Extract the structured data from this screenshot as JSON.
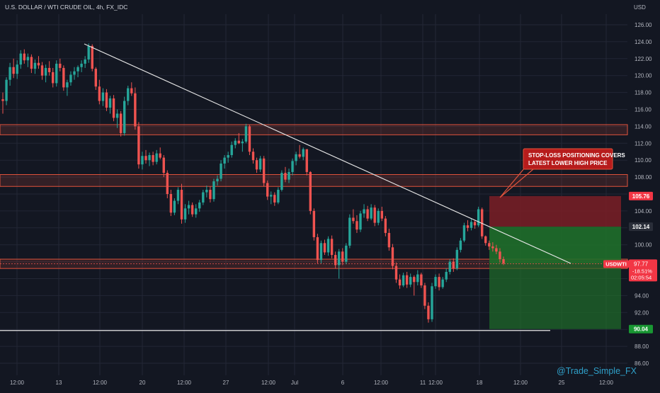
{
  "chart_data": {
    "type": "candlestick",
    "title": "U.S. DOLLAR / WTI CRUDE OIL, 4h, FX_IDC",
    "currency": "USD",
    "symbol": "USDWTI",
    "y_range": [
      85,
      127
    ],
    "y_ticks": [
      "126.00",
      "124.00",
      "122.00",
      "120.00",
      "118.00",
      "116.00",
      "114.00",
      "112.00",
      "110.00",
      "108.00",
      "106.00",
      "104.00",
      "102.00",
      "100.00",
      "98.00",
      "96.00",
      "94.00",
      "92.00",
      "90.00",
      "88.00",
      "86.00"
    ],
    "x_ticks": [
      "12:00",
      "13",
      "12:00",
      "20",
      "12:00",
      "27",
      "12:00",
      "Jul",
      "6",
      "12:00",
      "11",
      "12:00",
      "18",
      "12:00",
      "25",
      "12:00"
    ],
    "candles_y": [
      [
        117.2,
        118.0,
        115.5,
        117.0
      ],
      [
        117.0,
        119.8,
        116.5,
        119.5
      ],
      [
        119.5,
        121.5,
        118.8,
        121.0
      ],
      [
        121.0,
        122.0,
        119.7,
        120.2
      ],
      [
        120.2,
        121.8,
        119.6,
        121.3
      ],
      [
        121.3,
        123.0,
        120.8,
        122.6
      ],
      [
        122.6,
        123.1,
        121.4,
        121.8
      ],
      [
        121.8,
        122.6,
        121.0,
        122.2
      ],
      [
        122.2,
        122.5,
        120.3,
        120.8
      ],
      [
        120.8,
        121.9,
        120.2,
        121.5
      ],
      [
        121.5,
        122.3,
        120.8,
        121.2
      ],
      [
        121.2,
        121.6,
        119.5,
        120.0
      ],
      [
        120.0,
        121.3,
        119.2,
        120.9
      ],
      [
        120.9,
        121.7,
        120.0,
        120.4
      ],
      [
        120.4,
        120.9,
        118.6,
        119.1
      ],
      [
        119.1,
        121.8,
        118.7,
        121.4
      ],
      [
        121.4,
        122.0,
        120.5,
        120.9
      ],
      [
        120.9,
        121.2,
        118.2,
        118.6
      ],
      [
        118.6,
        119.5,
        117.6,
        119.2
      ],
      [
        119.2,
        120.5,
        118.8,
        120.1
      ],
      [
        120.1,
        121.0,
        119.5,
        120.5
      ],
      [
        120.5,
        121.2,
        119.8,
        121.0
      ],
      [
        121.0,
        121.8,
        120.4,
        121.4
      ],
      [
        121.4,
        122.3,
        120.9,
        121.9
      ],
      [
        121.9,
        123.8,
        121.5,
        123.5
      ],
      [
        123.5,
        123.7,
        120.5,
        120.8
      ],
      [
        120.8,
        121.0,
        118.3,
        118.7
      ],
      [
        118.7,
        119.5,
        116.6,
        117.0
      ],
      [
        117.0,
        118.5,
        116.4,
        118.0
      ],
      [
        118.0,
        118.4,
        115.8,
        116.2
      ],
      [
        116.2,
        117.6,
        115.5,
        117.3
      ],
      [
        117.3,
        117.7,
        114.6,
        115.0
      ],
      [
        115.0,
        116.0,
        113.8,
        115.5
      ],
      [
        115.5,
        115.8,
        112.8,
        113.2
      ],
      [
        113.2,
        117.5,
        112.9,
        117.0
      ],
      [
        117.0,
        118.8,
        116.5,
        118.5
      ],
      [
        118.5,
        119.2,
        117.6,
        117.9
      ],
      [
        117.9,
        118.6,
        113.6,
        114.0
      ],
      [
        114.0,
        114.5,
        109.0,
        109.5
      ],
      [
        109.5,
        111.0,
        108.9,
        110.5
      ],
      [
        110.5,
        111.2,
        109.6,
        110.0
      ],
      [
        110.0,
        110.9,
        109.3,
        110.6
      ],
      [
        110.6,
        111.0,
        109.4,
        109.8
      ],
      [
        109.8,
        111.2,
        109.5,
        110.8
      ],
      [
        110.8,
        111.5,
        110.1,
        110.3
      ],
      [
        110.3,
        110.6,
        108.0,
        108.5
      ],
      [
        108.5,
        108.8,
        105.5,
        106.0
      ],
      [
        106.0,
        106.5,
        103.4,
        103.8
      ],
      [
        103.8,
        105.5,
        103.5,
        105.2
      ],
      [
        105.2,
        106.8,
        104.8,
        106.5
      ],
      [
        106.5,
        107.2,
        102.5,
        103.0
      ],
      [
        103.0,
        104.8,
        102.6,
        104.3
      ],
      [
        104.3,
        105.2,
        103.6,
        104.7
      ],
      [
        104.7,
        105.0,
        103.3,
        103.6
      ],
      [
        103.6,
        104.8,
        103.2,
        104.3
      ],
      [
        104.3,
        105.3,
        103.9,
        105.0
      ],
      [
        105.0,
        106.5,
        104.7,
        106.2
      ],
      [
        106.2,
        107.0,
        105.6,
        106.5
      ],
      [
        106.5,
        106.9,
        105.0,
        105.4
      ],
      [
        105.4,
        107.8,
        105.1,
        107.5
      ],
      [
        107.5,
        108.2,
        107.0,
        107.8
      ],
      [
        107.8,
        110.0,
        107.5,
        109.6
      ],
      [
        109.6,
        110.6,
        109.0,
        110.3
      ],
      [
        110.3,
        111.0,
        109.7,
        110.6
      ],
      [
        110.6,
        112.2,
        110.3,
        111.8
      ],
      [
        111.8,
        112.6,
        111.4,
        112.3
      ],
      [
        112.3,
        113.2,
        111.9,
        112.0
      ],
      [
        112.0,
        112.5,
        111.0,
        112.2
      ],
      [
        112.2,
        114.3,
        112.0,
        114.0
      ],
      [
        114.0,
        114.2,
        110.6,
        111.0
      ],
      [
        111.0,
        111.4,
        109.6,
        110.0
      ],
      [
        110.0,
        110.3,
        108.5,
        108.9
      ],
      [
        108.9,
        110.5,
        108.6,
        110.2
      ],
      [
        110.2,
        110.5,
        106.9,
        107.3
      ],
      [
        107.3,
        107.6,
        105.3,
        105.7
      ],
      [
        105.7,
        106.3,
        104.8,
        105.9
      ],
      [
        105.9,
        106.2,
        104.6,
        105.0
      ],
      [
        105.0,
        106.8,
        104.8,
        106.5
      ],
      [
        106.5,
        108.8,
        106.3,
        108.5
      ],
      [
        108.5,
        109.2,
        107.4,
        107.7
      ],
      [
        107.7,
        109.0,
        107.3,
        108.6
      ],
      [
        108.6,
        110.2,
        108.2,
        109.9
      ],
      [
        109.9,
        111.0,
        109.4,
        110.7
      ],
      [
        110.7,
        111.8,
        110.2,
        110.4
      ],
      [
        110.4,
        111.5,
        110.0,
        111.3
      ],
      [
        111.3,
        110.8,
        108.2,
        108.6
      ],
      [
        108.6,
        108.7,
        103.6,
        104.0
      ],
      [
        104.0,
        104.3,
        100.5,
        100.9
      ],
      [
        100.9,
        101.3,
        97.8,
        98.2
      ],
      [
        98.2,
        100.5,
        97.8,
        100.2
      ],
      [
        100.2,
        100.6,
        98.8,
        99.1
      ],
      [
        99.1,
        101.0,
        98.7,
        100.7
      ],
      [
        100.7,
        101.1,
        98.4,
        98.8
      ],
      [
        98.8,
        99.2,
        97.2,
        97.6
      ],
      [
        97.6,
        99.5,
        96.0,
        99.2
      ],
      [
        99.2,
        99.6,
        97.6,
        98.0
      ],
      [
        98.0,
        100.2,
        97.7,
        99.9
      ],
      [
        99.9,
        103.6,
        99.6,
        103.2
      ],
      [
        103.2,
        104.2,
        102.5,
        102.8
      ],
      [
        102.8,
        103.5,
        101.4,
        101.8
      ],
      [
        101.8,
        104.0,
        101.5,
        103.7
      ],
      [
        103.7,
        104.8,
        103.2,
        104.2
      ],
      [
        104.2,
        104.6,
        102.8,
        103.1
      ],
      [
        103.1,
        104.8,
        102.9,
        104.4
      ],
      [
        104.4,
        104.7,
        102.2,
        102.6
      ],
      [
        102.6,
        104.3,
        102.3,
        104.0
      ],
      [
        104.0,
        104.5,
        102.8,
        103.1
      ],
      [
        103.1,
        103.4,
        101.0,
        101.4
      ],
      [
        101.4,
        101.9,
        99.3,
        99.7
      ],
      [
        99.7,
        100.1,
        97.1,
        97.5
      ],
      [
        97.5,
        97.9,
        95.5,
        95.9
      ],
      [
        95.9,
        96.5,
        94.8,
        95.2
      ],
      [
        95.2,
        96.7,
        95.0,
        96.4
      ],
      [
        96.4,
        96.8,
        94.9,
        95.3
      ],
      [
        95.3,
        96.6,
        95.0,
        96.2
      ],
      [
        96.2,
        96.4,
        94.0,
        95.6
      ],
      [
        95.6,
        97.0,
        95.2,
        96.5
      ],
      [
        96.5,
        96.7,
        94.9,
        95.2
      ],
      [
        95.2,
        95.5,
        92.4,
        92.8
      ],
      [
        92.8,
        93.2,
        90.8,
        91.2
      ],
      [
        91.2,
        95.5,
        90.9,
        95.1
      ],
      [
        95.1,
        96.5,
        94.8,
        96.2
      ],
      [
        96.2,
        96.6,
        94.6,
        95.0
      ],
      [
        95.0,
        96.2,
        94.8,
        95.9
      ],
      [
        95.9,
        97.2,
        95.6,
        96.8
      ],
      [
        96.8,
        98.3,
        96.5,
        98.0
      ],
      [
        98.0,
        98.4,
        96.8,
        97.2
      ],
      [
        97.2,
        99.7,
        97.0,
        99.4
      ],
      [
        99.4,
        100.8,
        99.1,
        100.5
      ],
      [
        100.5,
        102.6,
        100.3,
        102.3
      ],
      [
        102.3,
        102.9,
        101.6,
        102.0
      ],
      [
        102.0,
        103.1,
        101.7,
        102.7
      ],
      [
        102.7,
        102.9,
        101.9,
        102.3
      ],
      [
        102.3,
        104.5,
        102.1,
        104.2
      ],
      [
        104.2,
        104.4,
        100.7,
        101.0
      ],
      [
        101.0,
        101.1,
        99.9,
        100.2
      ],
      [
        100.2,
        100.5,
        99.4,
        99.8
      ],
      [
        99.8,
        100.3,
        99.2,
        99.6
      ],
      [
        99.6,
        100.0,
        98.9,
        99.2
      ],
      [
        99.2,
        99.6,
        97.9,
        98.3
      ],
      [
        98.3,
        98.6,
        97.6,
        97.8
      ]
    ],
    "price_boxes": {
      "stop": {
        "label": "105.76",
        "value": 105.76
      },
      "entry": {
        "label": "102.14",
        "value": 102.14
      },
      "current": {
        "symbol": "USDWTI",
        "price": "97.77",
        "change": "-18.51%",
        "timer": "02:05:54",
        "value": 97.77
      },
      "target": {
        "label": "90.04",
        "value": 90.04
      }
    },
    "annotation": {
      "line1": "STOP-LOSS POSITIONING COVERS",
      "line2": "LATEST LOWER HIGH PRICE"
    },
    "watermark": "@Trade_Simple_FX",
    "colors": {
      "bull": "#26a69a",
      "bear": "#ef5350",
      "zone_stroke": "#e0533c",
      "stop_fill": "#7b1f26",
      "target_fill": "#1f6e2a",
      "current_label": "#f23645",
      "target_label": "#199733",
      "grid": "#232735",
      "watermark": "#2fa0c9"
    }
  }
}
